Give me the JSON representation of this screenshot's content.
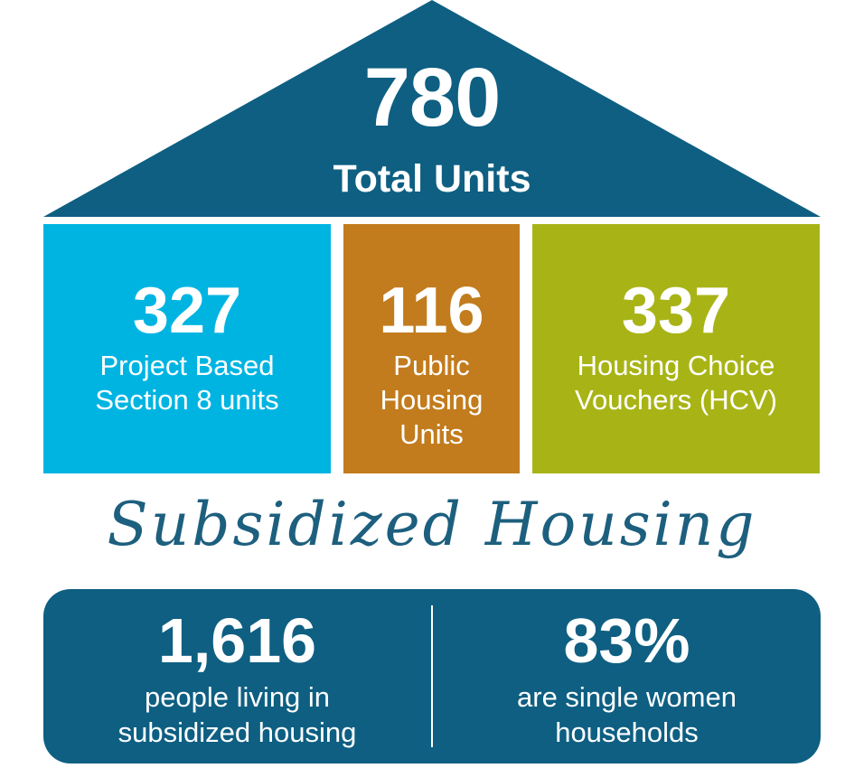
{
  "colors": {
    "navy": "#0e5f82",
    "sky": "#00b4e2",
    "bronze": "#c27c1d",
    "olive": "#a8b416",
    "script": "#1d5f7e"
  },
  "total": {
    "value": "780",
    "label": "Total Units"
  },
  "boxes": [
    {
      "value": "327",
      "label": "Project Based\nSection 8 units"
    },
    {
      "value": "116",
      "label": "Public\nHousing\nUnits"
    },
    {
      "value": "337",
      "label": "Housing Choice\nVouchers (HCV)"
    }
  ],
  "script_title": "Subsidized Housing",
  "stats": [
    {
      "value": "1,616",
      "label": "people living in\nsubsidized housing"
    },
    {
      "value": "83%",
      "label": "are single women\nhouseholds"
    }
  ]
}
